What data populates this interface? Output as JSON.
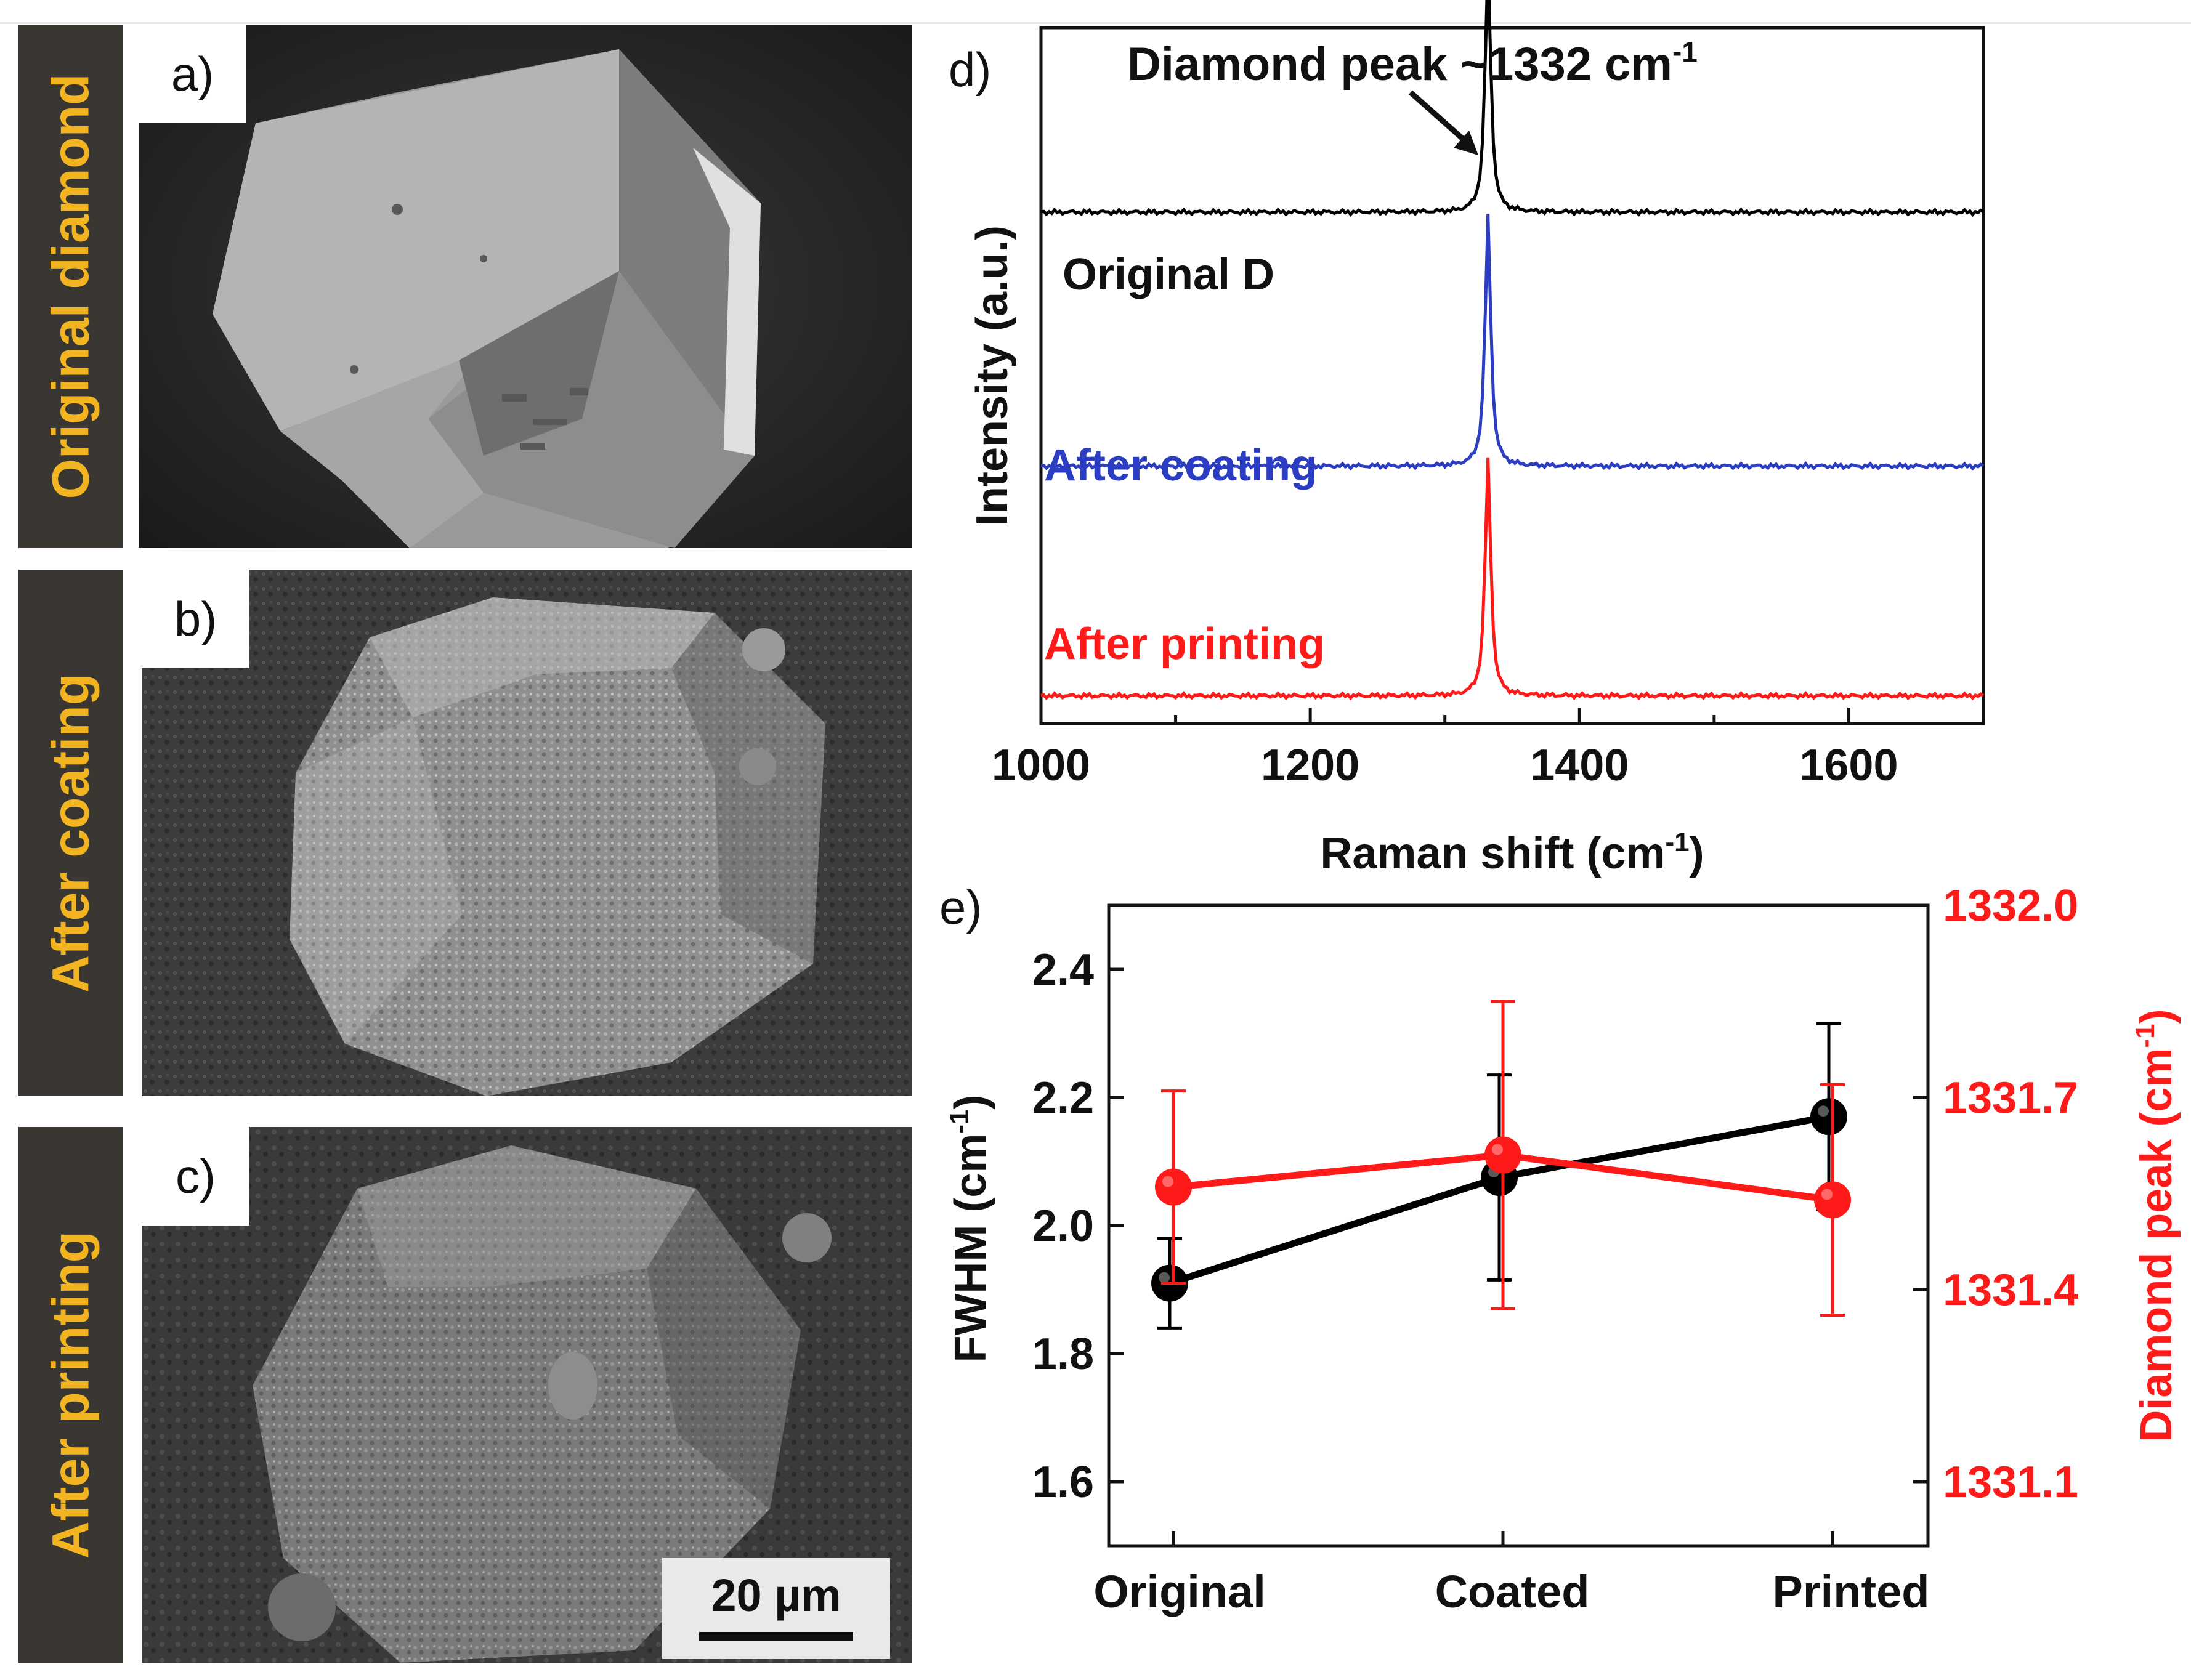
{
  "sem_panels": [
    {
      "label": "a)",
      "side_label": "Original diamond"
    },
    {
      "label": "b)",
      "side_label": "After coating"
    },
    {
      "label": "c)",
      "side_label": "After printing"
    }
  ],
  "scale_bar": {
    "text": "20 µm"
  },
  "raman": {
    "panel_label": "d)",
    "annotation": "Diamond peak ~1332 cm",
    "annotation_sup": "-1",
    "xlabel": "Raman shift (cm",
    "xlabel_sup": "-1",
    "xlabel_end": ")",
    "ylabel": "Intensity (a.u.)",
    "xticks": [
      "1000",
      "1200",
      "1400",
      "1600"
    ],
    "series_labels": [
      "Original D",
      "After coating",
      "After printing"
    ]
  },
  "fwhm": {
    "panel_label": "e)",
    "ylabel_left": "FWHM (cm",
    "ylabel_left_sup": "-1",
    "ylabel_left_end": ")",
    "ylabel_right": "Diamond peak (cm",
    "ylabel_right_sup": "-1",
    "ylabel_right_end": ")",
    "yticks_left": [
      "1.6",
      "1.8",
      "2.0",
      "2.2",
      "2.4"
    ],
    "yticks_right": [
      "1331.1",
      "1331.4",
      "1331.7",
      "1332.0"
    ],
    "categories": [
      "Original",
      "Coated",
      "Printed"
    ]
  },
  "chart_data": [
    {
      "type": "line",
      "xlim": [
        1000,
        1700
      ],
      "ylim": [
        0,
        1
      ],
      "peak_position": 1332,
      "series": [
        {
          "name": "Original D",
          "color": "#000000",
          "baseline": 0.735,
          "peak": 0.36
        },
        {
          "name": "After coating",
          "color": "#2b3dc2",
          "baseline": 0.37,
          "peak": 0.36
        },
        {
          "name": "After printing",
          "color": "#ff1a1a",
          "baseline": 0.04,
          "peak": 0.34
        }
      ]
    },
    {
      "type": "scatter",
      "categories": [
        "Original",
        "Coated",
        "Printed"
      ],
      "ylim_left": [
        1.5,
        2.5
      ],
      "ylim_right": [
        1331.0,
        1332.0
      ],
      "series": [
        {
          "axis": "left",
          "color": "#000000",
          "values": [
            1.91,
            2.075,
            2.17
          ],
          "error": [
            0.07,
            0.16,
            0.145
          ]
        },
        {
          "axis": "right",
          "color": "#ff1a1a",
          "values": [
            1331.56,
            1331.61,
            1331.54
          ],
          "error": [
            0.15,
            0.24,
            0.18
          ]
        }
      ]
    }
  ]
}
